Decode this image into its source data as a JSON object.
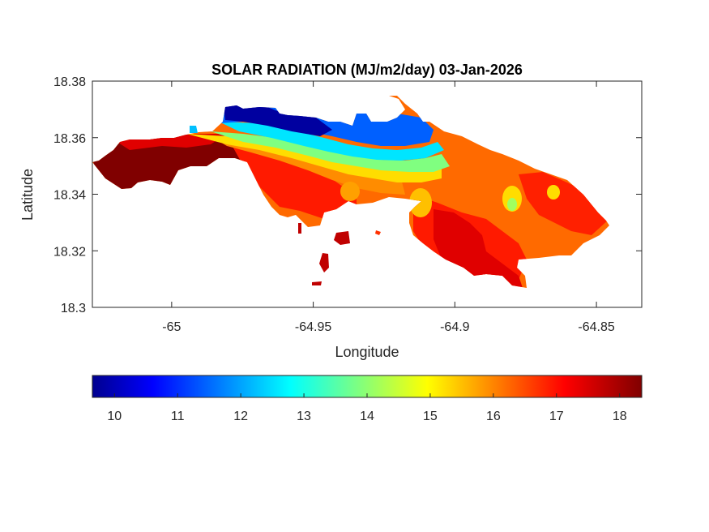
{
  "chart_data": {
    "type": "heatmap",
    "title": "SOLAR RADIATION (MJ/m2/day) 03-Jan-2026",
    "xlabel": "Longitude",
    "ylabel": "Latitude",
    "xlim": [
      -65.028,
      -64.834
    ],
    "ylim": [
      18.3,
      18.38
    ],
    "xticks": [
      -65,
      -64.95,
      -64.9,
      -64.85
    ],
    "xtick_labels": [
      "-65",
      "-64.95",
      "-64.9",
      "-64.85"
    ],
    "yticks": [
      18.3,
      18.32,
      18.34,
      18.36,
      18.38
    ],
    "ytick_labels": [
      "18.3",
      "18.32",
      "18.34",
      "18.36",
      "18.38"
    ],
    "grid": false,
    "colormap": "jet",
    "colorbar": {
      "orientation": "horizontal",
      "location": "bottom",
      "range": [
        9.65,
        18.35
      ],
      "ticks": [
        10,
        11,
        12,
        13,
        14,
        15,
        16,
        17,
        18
      ],
      "tick_labels": [
        "10",
        "11",
        "12",
        "13",
        "14",
        "15",
        "16",
        "17",
        "18"
      ]
    },
    "zones": [
      {
        "name": "west-dark-red",
        "value": 18.1,
        "color": "#800000"
      },
      {
        "name": "west-red-band",
        "value": 17.2,
        "color": "#ff1a00"
      },
      {
        "name": "west-orange-band",
        "value": 16.3,
        "color": "#ff8c00"
      },
      {
        "name": "central-yellow-band",
        "value": 15.0,
        "color": "#ffff00"
      },
      {
        "name": "central-green-band",
        "value": 14.0,
        "color": "#80ff80"
      },
      {
        "name": "central-cyan-band",
        "value": 13.0,
        "color": "#00ffff"
      },
      {
        "name": "north-blue",
        "value": 11.3,
        "color": "#0060ff"
      },
      {
        "name": "north-dark-blue",
        "value": 10.0,
        "color": "#0000a0"
      },
      {
        "name": "east-orange",
        "value": 16.2,
        "color": "#ff8c00"
      },
      {
        "name": "east-red",
        "value": 17.0,
        "color": "#ff2000"
      },
      {
        "name": "south-dark-red",
        "value": 17.6,
        "color": "#e00000"
      }
    ]
  }
}
